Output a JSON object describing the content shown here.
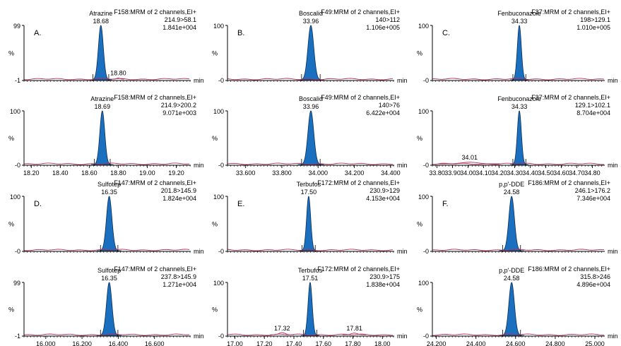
{
  "colors": {
    "peak_fill": "#1a6fbf",
    "peak_stroke": "#0b2f57",
    "baseline": "#b03060",
    "axis": "#000000"
  },
  "x_unit_label": "min",
  "chart_data": [
    {
      "type": "area",
      "section_label": "A.",
      "compound": "Atrazine",
      "rt": "18.68",
      "header": [
        "F158:MRM of 2 channels,EI+",
        "214.9>58.1",
        "1.841e+004"
      ],
      "ymax_label": "99",
      "ymin_label": "-1",
      "ylabel": "%",
      "ylim": [
        -1,
        100
      ],
      "xlim": [
        18.15,
        19.3
      ],
      "ticks": [],
      "x_ticks_shown": false,
      "peak": {
        "center": 18.68,
        "sigma": 0.017,
        "height": 100
      },
      "minor_peaks": [
        {
          "center": 18.8,
          "sigma": 0.01,
          "height": 2,
          "label": "18.80"
        }
      ]
    },
    {
      "type": "area",
      "section_label": "B.",
      "compound": "Boscalid",
      "rt": "33.96",
      "header": [
        "F49:MRM of 2 channels,EI+",
        "140>112",
        "1.106e+005"
      ],
      "ymax_label": "100",
      "ymin_label": "-0",
      "ylabel": "%",
      "ylim": [
        0,
        100
      ],
      "xlim": [
        33.5,
        34.42
      ],
      "ticks": [],
      "x_ticks_shown": false,
      "peak": {
        "center": 33.96,
        "sigma": 0.016,
        "height": 100
      },
      "minor_peaks": []
    },
    {
      "type": "area",
      "section_label": "C.",
      "compound": "Fenbuconazole",
      "rt": "34.33",
      "header": [
        "F37:MRM of 2 channels,EI+",
        "198>129.1",
        "1.010e+005"
      ],
      "ymax_label": "100",
      "ymin_label": "-0",
      "ylabel": "%",
      "ylim": [
        0,
        100
      ],
      "xlim": [
        33.77,
        34.88
      ],
      "ticks": [],
      "x_ticks_shown": false,
      "peak": {
        "center": 34.33,
        "sigma": 0.013,
        "height": 100
      },
      "minor_peaks": []
    },
    {
      "type": "area",
      "section_label": "",
      "compound": "Atrazine",
      "rt": "18.69",
      "header": [
        "F158:MRM of 2 channels,EI+",
        "214.9>200.2",
        "9.071e+003"
      ],
      "ymax_label": "100",
      "ymin_label": "-0",
      "ylabel": "%",
      "ylim": [
        0,
        100
      ],
      "xlim": [
        18.15,
        19.3
      ],
      "ticks": [
        "18.20",
        "18.40",
        "18.60",
        "18.80",
        "19.00",
        "19.20"
      ],
      "x_ticks_shown": true,
      "peak": {
        "center": 18.69,
        "sigma": 0.017,
        "height": 100
      },
      "minor_peaks": []
    },
    {
      "type": "area",
      "section_label": "",
      "compound": "Boscalid",
      "rt": "33.96",
      "header": [
        "F49:MRM of 2 channels,EI+",
        "140>76",
        "6.422e+004"
      ],
      "ymax_label": "100",
      "ymin_label": "-0",
      "ylabel": "%",
      "ylim": [
        0,
        100
      ],
      "xlim": [
        33.5,
        34.42
      ],
      "ticks": [
        "33.600",
        "33.800",
        "34.000",
        "34.200",
        "34.400"
      ],
      "x_ticks_shown": true,
      "peak": {
        "center": 33.96,
        "sigma": 0.016,
        "height": 100
      },
      "minor_peaks": []
    },
    {
      "type": "area",
      "section_label": "",
      "compound": "Fenbuconazole",
      "rt": "34.33",
      "header": [
        "F37:MRM of 2 channels,EI+",
        "129.1>102.1",
        "8.704e+004"
      ],
      "ymax_label": "100",
      "ymin_label": "-0",
      "ylabel": "%",
      "ylim": [
        0,
        100
      ],
      "xlim": [
        33.77,
        34.88
      ],
      "ticks": [
        "33.80",
        "33.90",
        "34.00",
        "34.10",
        "34.20",
        "34.30",
        "34.40",
        "34.50",
        "34.60",
        "34.70",
        "34.80"
      ],
      "x_ticks_shown": true,
      "peak": {
        "center": 34.33,
        "sigma": 0.013,
        "height": 100
      },
      "minor_peaks": [
        {
          "center": 34.01,
          "sigma": 0.05,
          "height": 3,
          "label": "34.01"
        }
      ]
    },
    {
      "type": "area",
      "section_label": "D.",
      "compound": "Sulfotep",
      "rt": "16.35",
      "header": [
        "F147:MRM of 2 channels,EI+",
        "201.8>145.9",
        "1.824e+004"
      ],
      "ymax_label": "100",
      "ymin_label": "-0",
      "ylabel": "%",
      "ylim": [
        0,
        100
      ],
      "xlim": [
        15.88,
        16.8
      ],
      "ticks": [],
      "x_ticks_shown": false,
      "peak": {
        "center": 16.35,
        "sigma": 0.015,
        "height": 100
      },
      "minor_peaks": []
    },
    {
      "type": "area",
      "section_label": "E.",
      "compound": "Terbufos",
      "rt": "17.50",
      "header": [
        "F172:MRM of 2 channels,EI+",
        "230.9>129",
        "4.153e+004"
      ],
      "ymax_label": "100",
      "ymin_label": "-0",
      "ylabel": "%",
      "ylim": [
        0,
        100
      ],
      "xlim": [
        16.95,
        18.08
      ],
      "ticks": [],
      "x_ticks_shown": false,
      "peak": {
        "center": 17.5,
        "sigma": 0.014,
        "height": 100
      },
      "minor_peaks": []
    },
    {
      "type": "area",
      "section_label": "F.",
      "compound": "p,p'-DDE",
      "rt": "24.58",
      "header": [
        "F186:MRM of 2 channels,EI+",
        "246.1>176.2",
        "7.346e+004"
      ],
      "ymax_label": "100",
      "ymin_label": "-0",
      "ylabel": "%",
      "ylim": [
        0,
        100
      ],
      "xlim": [
        24.18,
        25.05
      ],
      "ticks": [],
      "x_ticks_shown": false,
      "peak": {
        "center": 24.58,
        "sigma": 0.014,
        "height": 100
      },
      "minor_peaks": []
    },
    {
      "type": "area",
      "section_label": "",
      "compound": "Sulfotep",
      "rt": "16.35",
      "header": [
        "F147:MRM of 2 channels,EI+",
        "237.8>145.9",
        "1.271e+004"
      ],
      "ymax_label": "99",
      "ymin_label": "-1",
      "ylabel": "%",
      "ylim": [
        -1,
        100
      ],
      "xlim": [
        15.88,
        16.8
      ],
      "ticks": [
        "16.000",
        "16.200",
        "16.400",
        "16.600"
      ],
      "x_ticks_shown": true,
      "peak": {
        "center": 16.35,
        "sigma": 0.015,
        "height": 100
      },
      "minor_peaks": []
    },
    {
      "type": "area",
      "section_label": "",
      "compound": "Terbufos",
      "rt": "17.51",
      "header": [
        "F172:MRM of 2 channels,EI+",
        "230.9>175",
        "1.838e+004"
      ],
      "ymax_label": "100",
      "ymin_label": "-0",
      "ylabel": "%",
      "ylim": [
        0,
        100
      ],
      "xlim": [
        16.95,
        18.08
      ],
      "ticks": [
        "17.00",
        "17.20",
        "17.40",
        "17.60",
        "17.80",
        "18.00"
      ],
      "x_ticks_shown": true,
      "peak": {
        "center": 17.51,
        "sigma": 0.014,
        "height": 100
      },
      "minor_peaks": [
        {
          "center": 17.32,
          "sigma": 0.02,
          "height": 4,
          "label": "17.32"
        },
        {
          "center": 17.81,
          "sigma": 0.02,
          "height": 3,
          "label": "17.81"
        }
      ]
    },
    {
      "type": "area",
      "section_label": "",
      "compound": "p,p'-DDE",
      "rt": "24.58",
      "header": [
        "F186:MRM of 2 channels,EI+",
        "315.8>246",
        "4.896e+004"
      ],
      "ymax_label": "100",
      "ymin_label": "-0",
      "ylabel": "%",
      "ylim": [
        0,
        100
      ],
      "xlim": [
        24.18,
        25.05
      ],
      "ticks": [
        "24.200",
        "24.400",
        "24.600",
        "24.800",
        "25.000"
      ],
      "x_ticks_shown": true,
      "peak": {
        "center": 24.58,
        "sigma": 0.014,
        "height": 100
      },
      "minor_peaks": []
    }
  ]
}
